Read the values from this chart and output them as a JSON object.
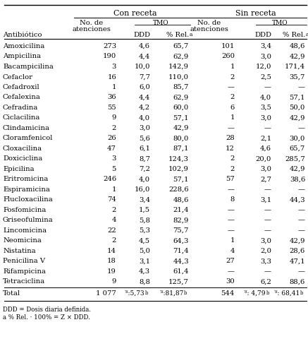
{
  "col_group1": "Con receta",
  "col_group2": "Sin receta",
  "antibiotic_header": "Antibiótico",
  "no_de_header": "No. de",
  "atenciones_header": "atenciones",
  "tmo_header": "TMO",
  "ddd_header": "DDD",
  "pct_rel_header": "% Rel.",
  "pct_rel_sup": "a",
  "rows": [
    [
      "Amoxicilina",
      "273",
      "4,6",
      "65,7",
      "101",
      "3,4",
      "48,6"
    ],
    [
      "Ampicilina",
      "190",
      "4,4",
      "62,9",
      "260",
      "3,0",
      "42,9"
    ],
    [
      "Bacampicilina",
      "3",
      "10,0",
      "142,9",
      "1",
      "12,0",
      "171,4"
    ],
    [
      "Cefaclor",
      "16",
      "7,7",
      "110,0",
      "2",
      "2,5",
      "35,7"
    ],
    [
      "Cefadroxil",
      "1",
      "6,0",
      "85,7",
      "—",
      "—",
      "—"
    ],
    [
      "Cefalexina",
      "36",
      "4,4",
      "62,9",
      "2",
      "4,0",
      "57,1"
    ],
    [
      "Cefradina",
      "55",
      "4,2",
      "60,0",
      "6",
      "3,5",
      "50,0"
    ],
    [
      "Ciclacilina",
      "9",
      "4,0",
      "57,1",
      "1",
      "3,0",
      "42,9"
    ],
    [
      "Clindamicina",
      "2",
      "3,0",
      "42,9",
      "—",
      "—",
      "—"
    ],
    [
      "Cloramfenicol",
      "26",
      "5,6",
      "80,0",
      "28",
      "2,1",
      "30,0"
    ],
    [
      "Cloxacilina",
      "47",
      "6,1",
      "87,1",
      "12",
      "4,6",
      "65,7"
    ],
    [
      "Doxiciclina",
      "3",
      "8,7",
      "124,3",
      "2",
      "20,0",
      "285,7"
    ],
    [
      "Epicilina",
      "5",
      "7,2",
      "102,9",
      "2",
      "3,0",
      "42,9"
    ],
    [
      "Eritromicina",
      "246",
      "4,0",
      "57,1",
      "57",
      "2,7",
      "38,6"
    ],
    [
      "Espiramicina",
      "1",
      "16,0",
      "228,6",
      "—",
      "—",
      "—"
    ],
    [
      "Flucloxacilina",
      "74",
      "3,4",
      "48,6",
      "8",
      "3,1",
      "44,3"
    ],
    [
      "Fosfomicina",
      "2",
      "1,5",
      "21,4",
      "—",
      "—",
      "—"
    ],
    [
      "Griseofulmina",
      "4",
      "5,8",
      "82,9",
      "—",
      "—",
      "—"
    ],
    [
      "Lincomicina",
      "22",
      "5,3",
      "75,7",
      "—",
      "—",
      "—"
    ],
    [
      "Neomicina",
      "2",
      "4,5",
      "64,3",
      "1",
      "3,0",
      "42,9"
    ],
    [
      "Nistatina",
      "14",
      "5,0",
      "71,4",
      "4",
      "2,0",
      "28,6"
    ],
    [
      "Penicilina V",
      "18",
      "3,1",
      "44,3",
      "27",
      "3,3",
      "47,1"
    ],
    [
      "Rifampicina",
      "19",
      "4,3",
      "61,4",
      "—",
      "—",
      "—"
    ],
    [
      "Tetraciclina",
      "9",
      "8,8",
      "125,7",
      "30",
      "6,2",
      "88,6"
    ]
  ],
  "total_label": "Total",
  "total_atenc_con": "1 077",
  "total_ddd_con": "ᵊ̅:5,73",
  "total_pct_con": "ᵊ̅:81,87",
  "total_atenc_sin": "544",
  "total_ddd_sin": "ᵊ̅: 4,79",
  "total_pct_sin": "ᵊ̅: 68,41",
  "total_sup": "b",
  "footnote1": "DDD = Dosis diaria definida.",
  "footnote2": "a % Rel. · 100% = Z × DDD.",
  "bg_color": "#ffffff",
  "text_color": "#000000",
  "fs": 7.2,
  "fs_header": 8.0,
  "fs_small": 6.5,
  "fs_footnote": 6.2
}
